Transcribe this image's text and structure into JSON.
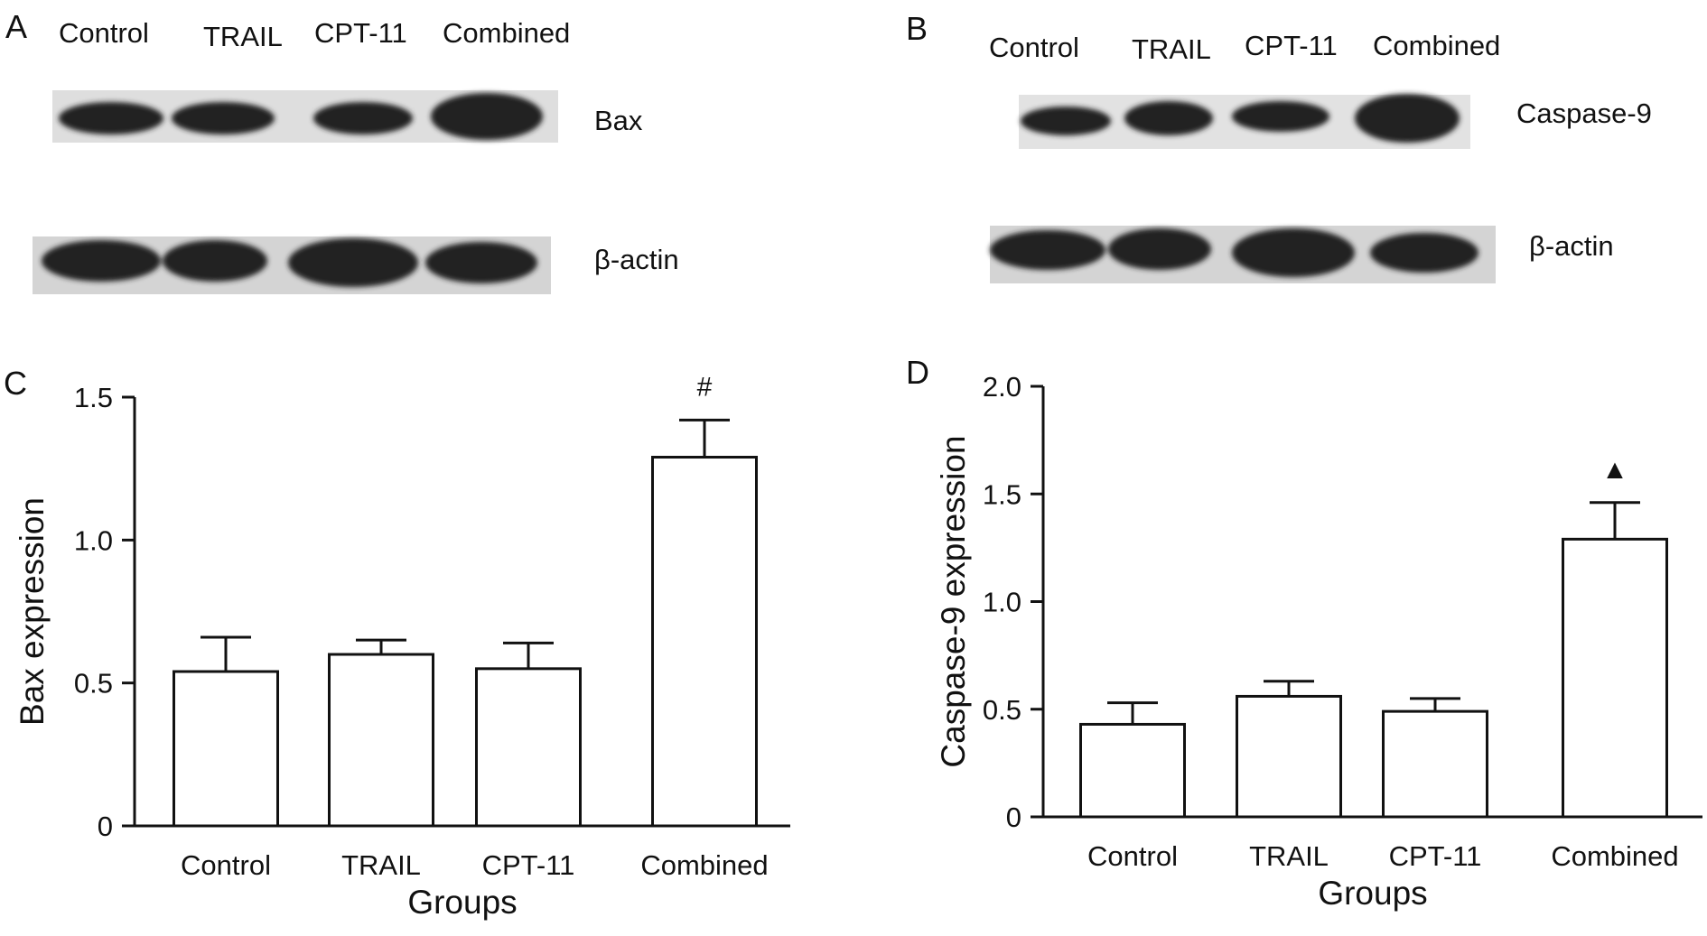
{
  "panels": {
    "A": {
      "letter": "A",
      "lanes": [
        "Control",
        "TRAIL",
        "CPT-11",
        "Combined"
      ],
      "target_label": "Bax",
      "control_label": "β-actin"
    },
    "B": {
      "letter": "B",
      "lanes": [
        "Control",
        "TRAIL",
        "CPT-11",
        "Combined"
      ],
      "target_label": "Caspase-9",
      "control_label": "β-actin"
    }
  },
  "chart_data": [
    {
      "panel": "C",
      "type": "bar",
      "categories": [
        "Control",
        "TRAIL",
        "CPT-11",
        "Combined"
      ],
      "values": [
        0.54,
        0.6,
        0.55,
        1.29
      ],
      "errors": [
        0.12,
        0.05,
        0.09,
        0.13
      ],
      "annotations": [
        "",
        "",
        "",
        "#"
      ],
      "ylabel": "Bax expression",
      "xlabel": "Groups",
      "ylim": [
        0,
        1.5
      ],
      "yticks": [
        0,
        0.5,
        1.0,
        1.5
      ],
      "ytick_labels": [
        "0",
        "0.5",
        "1.0",
        "1.5"
      ],
      "grid": false,
      "colors": {
        "bar_fill": "#ffffff",
        "stroke": "#111111"
      }
    },
    {
      "panel": "D",
      "type": "bar",
      "categories": [
        "Control",
        "TRAIL",
        "CPT-11",
        "Combined"
      ],
      "values": [
        0.43,
        0.56,
        0.49,
        1.29
      ],
      "errors": [
        0.1,
        0.07,
        0.06,
        0.17
      ],
      "annotations": [
        "",
        "",
        "",
        "▲"
      ],
      "ylabel": "Caspase-9 expression",
      "xlabel": "Groups",
      "ylim": [
        0,
        2.0
      ],
      "yticks": [
        0,
        0.5,
        1.0,
        1.5,
        2.0
      ],
      "ytick_labels": [
        "0",
        "0.5",
        "1.0",
        "1.5",
        "2.0"
      ],
      "grid": false,
      "colors": {
        "bar_fill": "#ffffff",
        "stroke": "#111111"
      }
    }
  ]
}
